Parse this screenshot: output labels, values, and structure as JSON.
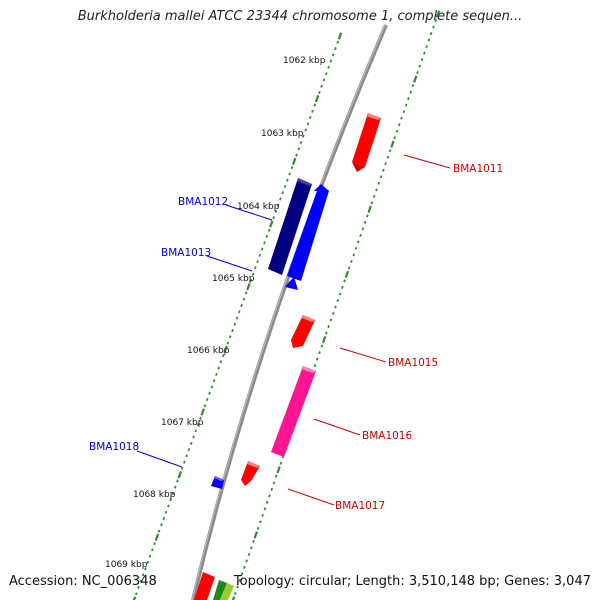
{
  "title": "Burkholderia mallei ATCC 23344 chromosome 1, complete sequen...",
  "footer": {
    "accession": "Accession: NC_006348",
    "summary": "Topology: circular; Length: 3,510,148 bp; Genes: 3,047"
  },
  "colors": {
    "backbone": "#808080",
    "forward_tick": "#2e8b2e",
    "forward_gene": "#ff0000",
    "forward_gene_alt": "#ff1493",
    "reverse_gene": "#0000ff",
    "reverse_gene_dark": "#000080",
    "label_forward": "#cc0000",
    "label_reverse": "#0000cc"
  },
  "kbp_labels": [
    "1062 kbp",
    "1063 kbp",
    "1064 kbp",
    "1065 kbp",
    "1066 kbp",
    "1067 kbp",
    "1068 kbp",
    "1069 kbp"
  ],
  "genes": [
    {
      "name": "BMA1011",
      "strand": "forward",
      "color": "#ff0000"
    },
    {
      "name": "BMA1012",
      "strand": "reverse",
      "color": "#000080"
    },
    {
      "name": "BMA1013",
      "strand": "reverse",
      "color": "#0000ff"
    },
    {
      "name": "BMA1015",
      "strand": "forward",
      "color": "#ff0000"
    },
    {
      "name": "BMA1016",
      "strand": "forward",
      "color": "#ff1493"
    },
    {
      "name": "BMA1017",
      "strand": "forward",
      "color": "#ff0000"
    },
    {
      "name": "BMA1018",
      "strand": "reverse",
      "color": "#0000ff"
    }
  ]
}
